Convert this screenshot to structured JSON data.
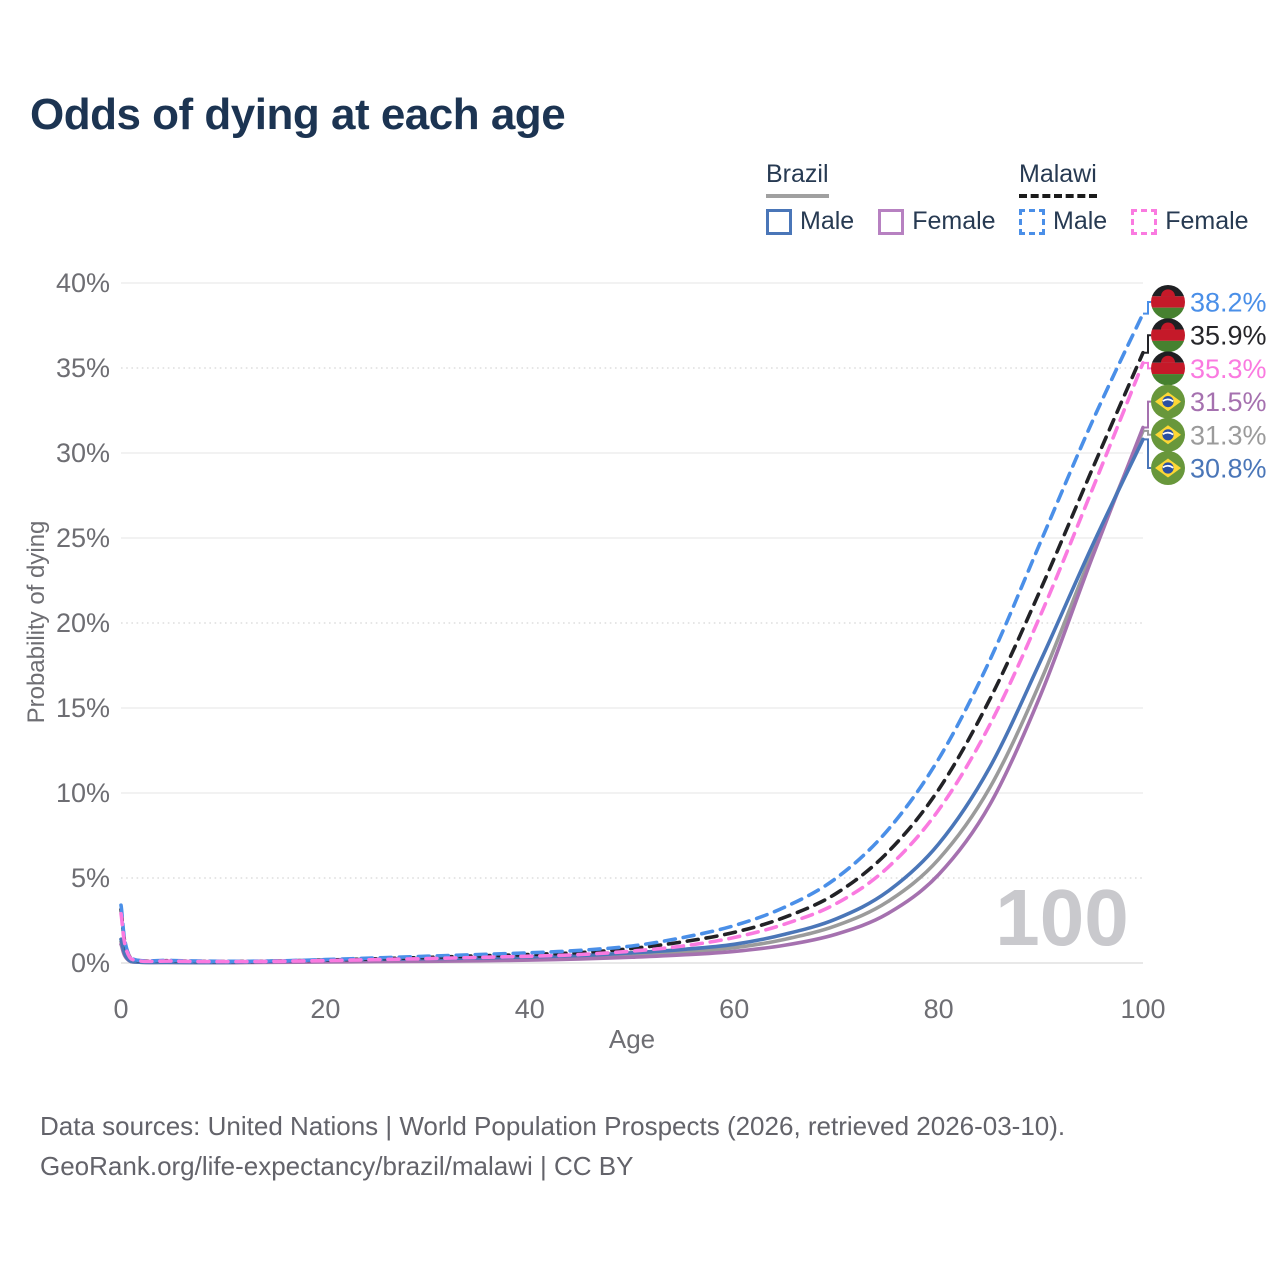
{
  "title": "Odds of dying at each age",
  "legend": {
    "brazil": {
      "label": "Brazil",
      "male_label": "Male",
      "female_label": "Female"
    },
    "malawi": {
      "label": "Malawi",
      "male_label": "Male",
      "female_label": "Female"
    }
  },
  "footer": {
    "line1": "Data sources: United Nations | World Population Prospects (2026, retrieved 2026-03-10).",
    "line2": "GeoRank.org/life-expectancy/brazil/malawi | CC BY"
  },
  "colors": {
    "title": "#1c3452",
    "axis_text": "#6e6e73",
    "grid_solid": "#ebebeb",
    "grid_dotted": "#d8d8d8",
    "baseline": "#e0e0e0",
    "watermark": "#c9c9cd",
    "footer_text": "#63636a",
    "legend_text": "#273a52"
  },
  "chart_data": {
    "type": "line",
    "title": "Odds of dying at each age",
    "xlabel": "Age",
    "ylabel": "Probability of dying",
    "watermark": "100",
    "grid": true,
    "legend_position": "top-right",
    "xlim": [
      0,
      100
    ],
    "ylim": [
      0,
      40
    ],
    "x_ticks": [
      0,
      20,
      40,
      60,
      80,
      100
    ],
    "y_ticks": [
      {
        "value": 0,
        "label": "0%",
        "style": "solid"
      },
      {
        "value": 5,
        "label": "5%",
        "style": "dotted"
      },
      {
        "value": 10,
        "label": "10%",
        "style": "solid"
      },
      {
        "value": 15,
        "label": "15%",
        "style": "solid"
      },
      {
        "value": 20,
        "label": "20%",
        "style": "dotted"
      },
      {
        "value": 25,
        "label": "25%",
        "style": "solid"
      },
      {
        "value": 30,
        "label": "30%",
        "style": "solid"
      },
      {
        "value": 35,
        "label": "35%",
        "style": "dotted"
      },
      {
        "value": 40,
        "label": "40%",
        "style": "solid"
      }
    ],
    "x": [
      0,
      1,
      5,
      10,
      15,
      20,
      25,
      30,
      35,
      40,
      45,
      50,
      55,
      60,
      65,
      70,
      75,
      80,
      85,
      90,
      95,
      100
    ],
    "series": [
      {
        "name": "Brazil Combined",
        "country": "brazil",
        "sex": "combined",
        "color": "#9b9b9b",
        "label_color": "#9b9b9b",
        "dashed": false,
        "end_label": "31.3%",
        "values": [
          1.25,
          0.085,
          0.035,
          0.025,
          0.07,
          0.12,
          0.15,
          0.18,
          0.22,
          0.27,
          0.35,
          0.47,
          0.65,
          0.9,
          1.4,
          2.2,
          3.6,
          6.1,
          10.3,
          16.6,
          24.1,
          31.3
        ]
      },
      {
        "name": "Brazil Female",
        "country": "brazil",
        "sex": "female",
        "color": "#a571af",
        "label_color": "#a571af",
        "dashed": false,
        "end_label": "31.5%",
        "values": [
          1.1,
          0.08,
          0.03,
          0.02,
          0.04,
          0.06,
          0.08,
          0.1,
          0.13,
          0.17,
          0.24,
          0.34,
          0.48,
          0.68,
          1.05,
          1.7,
          2.9,
          5.2,
          9.3,
          15.8,
          23.8,
          31.5
        ]
      },
      {
        "name": "Brazil Male",
        "country": "brazil",
        "sex": "male",
        "color": "#4a76b8",
        "label_color": "#4a76b8",
        "dashed": false,
        "end_label": "30.8%",
        "values": [
          1.4,
          0.09,
          0.04,
          0.03,
          0.1,
          0.18,
          0.22,
          0.26,
          0.3,
          0.36,
          0.45,
          0.6,
          0.8,
          1.1,
          1.7,
          2.6,
          4.2,
          7.0,
          11.5,
          17.8,
          24.5,
          30.8
        ]
      },
      {
        "name": "Malawi Combined",
        "country": "malawi",
        "sex": "combined",
        "color": "#222226",
        "label_color": "#26262a",
        "dashed": true,
        "end_label": "35.9%",
        "values": [
          3.15,
          0.26,
          0.13,
          0.09,
          0.11,
          0.17,
          0.25,
          0.33,
          0.42,
          0.5,
          0.62,
          0.85,
          1.25,
          1.8,
          2.7,
          4.1,
          6.5,
          10.2,
          15.5,
          22.0,
          29.0,
          35.9
        ]
      },
      {
        "name": "Malawi Male",
        "country": "malawi",
        "sex": "male",
        "color": "#4a8fe8",
        "label_color": "#4a8fe8",
        "dashed": true,
        "end_label": "38.2%",
        "values": [
          3.4,
          0.28,
          0.15,
          0.1,
          0.12,
          0.2,
          0.3,
          0.4,
          0.5,
          0.6,
          0.75,
          1.0,
          1.5,
          2.2,
          3.3,
          5.0,
          7.8,
          12.0,
          17.8,
          24.8,
          31.8,
          38.2
        ]
      },
      {
        "name": "Malawi Female",
        "country": "malawi",
        "sex": "female",
        "color": "#fa7ae0",
        "label_color": "#fa7ae0",
        "dashed": true,
        "end_label": "35.3%",
        "values": [
          2.9,
          0.24,
          0.11,
          0.08,
          0.1,
          0.14,
          0.2,
          0.26,
          0.33,
          0.4,
          0.5,
          0.7,
          1.0,
          1.5,
          2.3,
          3.5,
          5.6,
          9.0,
          14.0,
          20.5,
          27.8,
          35.3
        ]
      }
    ]
  }
}
